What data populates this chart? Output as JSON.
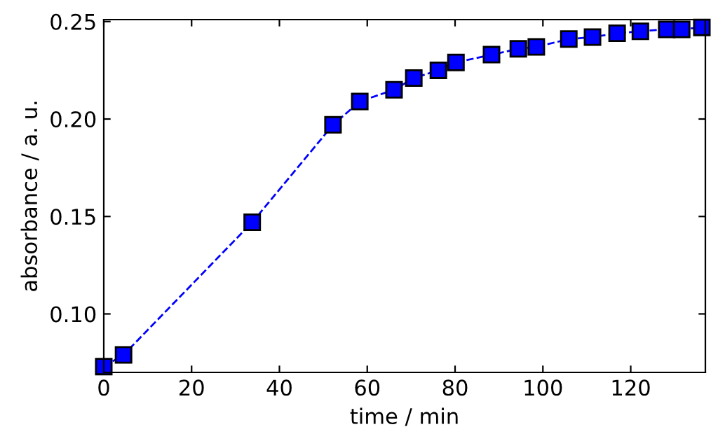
{
  "chart_data": {
    "type": "line",
    "xlabel": "time / min",
    "ylabel": "absorbance / a. u.",
    "x": [
      0,
      4.5,
      33.8,
      52.2,
      58.3,
      66.1,
      70.6,
      76.2,
      80.2,
      88.3,
      94.4,
      98.5,
      105.9,
      111.3,
      116.9,
      122.2,
      128.2,
      131.6,
      136.2
    ],
    "series": [
      {
        "color": "#0000ff",
        "values": [
          0.073,
          0.079,
          0.147,
          0.197,
          0.209,
          0.215,
          0.221,
          0.225,
          0.229,
          0.233,
          0.236,
          0.237,
          0.241,
          0.242,
          0.244,
          0.245,
          0.246,
          0.246,
          0.247
        ]
      }
    ],
    "xlim": [
      0,
      137
    ],
    "ylim": [
      0.07,
      0.251
    ],
    "xticks": [
      0,
      20,
      40,
      60,
      80,
      100,
      120
    ],
    "yticks": [
      {
        "value": 0.1,
        "label": "0.10"
      },
      {
        "value": 0.15,
        "label": "0.15"
      },
      {
        "value": 0.2,
        "label": "0.20"
      },
      {
        "value": 0.25,
        "label": "0.25"
      }
    ],
    "marker": "square",
    "line_style": "dashed"
  }
}
